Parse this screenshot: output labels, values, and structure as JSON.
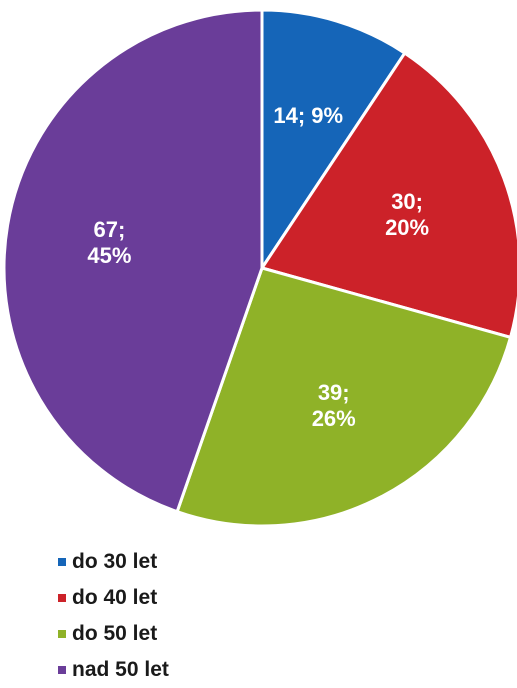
{
  "chart_data": {
    "type": "pie",
    "title": "",
    "legend_position": "bottom-left",
    "start_angle_deg": 0,
    "direction": "clockwise",
    "slices": [
      {
        "name": "do 30 let",
        "value": 14,
        "percent": "9%",
        "label_lines": [
          "14; 9%"
        ],
        "color": "#1565b8"
      },
      {
        "name": "do 40 let",
        "value": 30,
        "percent": "20%",
        "label_lines": [
          "30;",
          "20%"
        ],
        "color": "#cc2229"
      },
      {
        "name": "do 50 let",
        "value": 39,
        "percent": "26%",
        "label_lines": [
          "39;",
          "26%"
        ],
        "color": "#8fb228"
      },
      {
        "name": "nad 50 let",
        "value": 67,
        "percent": "45%",
        "label_lines": [
          "67;",
          "45%"
        ],
        "color": "#6a3d99"
      }
    ]
  }
}
